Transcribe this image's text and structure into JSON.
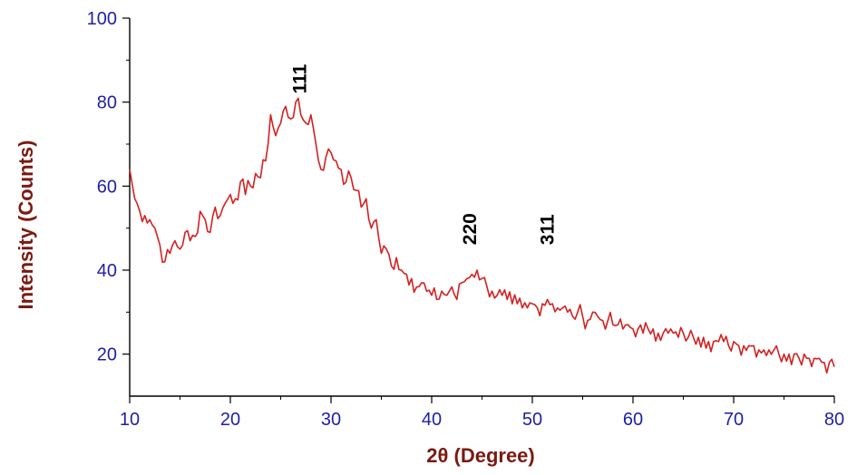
{
  "chart_data": {
    "type": "line",
    "title": "",
    "xlabel": "2θ (Degree)",
    "ylabel": "Intensity (Counts)",
    "xlim": [
      10,
      80
    ],
    "ylim": [
      10,
      100
    ],
    "xticks": [
      "10",
      "20",
      "30",
      "40",
      "50",
      "60",
      "70",
      "80"
    ],
    "yticks": [
      "20",
      "40",
      "60",
      "80",
      "100"
    ],
    "grid": false,
    "legend": "none",
    "line_color": "#d42020",
    "axis_tick_color": "#1f1fa8",
    "axis_title_color": "#7a1a12",
    "annotations": [
      {
        "text": "111",
        "x": 26.9,
        "y": 82
      },
      {
        "text": "220",
        "x": 43.8,
        "y": 46
      },
      {
        "text": "311",
        "x": 51.5,
        "y": 46
      }
    ],
    "series": [
      {
        "x": [
          10.0,
          10.5,
          11.0,
          11.5,
          12.0,
          12.5,
          13.0,
          13.5,
          14.0,
          14.5,
          15.0,
          15.5,
          16.0,
          16.5,
          17.0,
          17.5,
          18.0,
          18.5,
          19.0,
          19.5,
          20.0,
          20.5,
          21.0,
          21.5,
          22.0,
          22.5,
          23.0,
          23.5,
          24.0,
          24.5,
          25.0,
          25.5,
          26.0,
          26.5,
          27.0,
          27.5,
          28.0,
          28.5,
          29.0,
          29.5,
          30.0,
          30.5,
          31.0,
          31.5,
          32.0,
          32.5,
          33.0,
          33.5,
          34.0,
          34.5,
          35.0,
          35.5,
          36.0,
          36.5,
          37.0,
          37.5,
          38.0,
          38.5,
          39.0,
          39.5,
          40.0,
          40.5,
          41.0,
          41.5,
          42.0,
          42.5,
          43.0,
          43.5,
          44.0,
          44.5,
          45.0,
          45.5,
          46.0,
          46.5,
          47.0,
          47.5,
          48.0,
          48.5,
          49.0,
          49.5,
          50.0,
          50.5,
          51.0,
          51.5,
          52.0,
          52.5,
          53.0,
          53.5,
          54.0,
          54.5,
          55.0,
          55.5,
          56.0,
          56.5,
          57.0,
          57.5,
          58.0,
          58.5,
          59.0,
          59.5,
          60.0,
          60.5,
          61.0,
          61.5,
          62.0,
          62.5,
          63.0,
          63.5,
          64.0,
          64.5,
          65.0,
          65.5,
          66.0,
          66.5,
          67.0,
          67.5,
          68.0,
          68.5,
          69.0,
          69.5,
          70.0,
          70.5,
          71.0,
          71.5,
          72.0,
          72.5,
          73.0,
          73.5,
          74.0,
          74.5,
          75.0,
          75.5,
          76.0,
          76.5,
          77.0,
          77.5,
          78.0,
          78.5,
          79.0,
          79.5,
          80.0
        ],
        "y": [
          64,
          57,
          54,
          53,
          52,
          50,
          46,
          42,
          44,
          47,
          45,
          49,
          47,
          48,
          54,
          52,
          49,
          55,
          53,
          56,
          58,
          57,
          61,
          58,
          60,
          63,
          62,
          66,
          77,
          72,
          75,
          79,
          76,
          80,
          77,
          75,
          77,
          70,
          64,
          67,
          68,
          66,
          64,
          61,
          62,
          59,
          55,
          57,
          50,
          52,
          44,
          45,
          41,
          43,
          40,
          39,
          38,
          36,
          37,
          35,
          34,
          33,
          35,
          34,
          36,
          33,
          37,
          38,
          39,
          40,
          38,
          36,
          35,
          34,
          34,
          33,
          32,
          32,
          31,
          31,
          32,
          31,
          32,
          33,
          32,
          31,
          31,
          30,
          29,
          30,
          29,
          28,
          30,
          29,
          28,
          28,
          27,
          27,
          26,
          27,
          26,
          26,
          25,
          26,
          26,
          25,
          25,
          25,
          25,
          24,
          25,
          24,
          24,
          24,
          24,
          23,
          23,
          23,
          23,
          22,
          23,
          22,
          22,
          22,
          22,
          21,
          21,
          21,
          21,
          20,
          20,
          20,
          20,
          19,
          20,
          19,
          19,
          19,
          18,
          18,
          17
        ]
      }
    ]
  }
}
